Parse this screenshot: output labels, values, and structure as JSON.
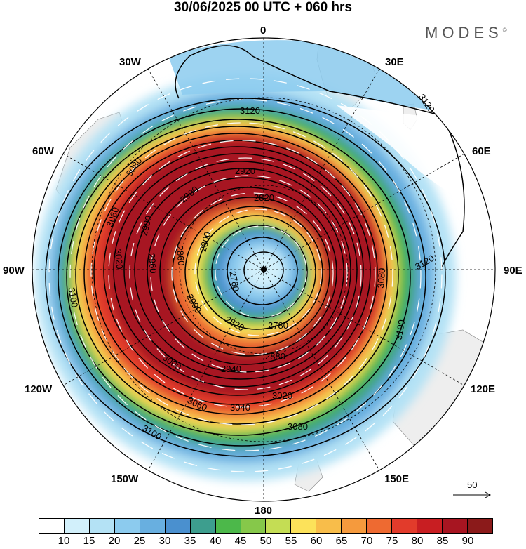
{
  "title": "30/06/2025  00 UTC  + 060 hrs",
  "brand": "MODES",
  "brand_mark": "©",
  "longitude_labels": {
    "n0": "0",
    "n30e": "30E",
    "n60e": "60E",
    "n90e": "90E",
    "n120e": "120E",
    "n150e": "150E",
    "n180": "180",
    "n150w": "150W",
    "n120w": "120W",
    "n90w": "90W",
    "n60w": "60W",
    "n30w": "30W"
  },
  "contour_labels": {
    "c3120a": "3120",
    "c3120b": "3120",
    "c3120c": "3120",
    "c3100a": "3100",
    "c3100b": "3100",
    "c3100c": "3100",
    "c3080a": "3080",
    "c3080b": "3080",
    "c3080c": "3080",
    "c3060a": "3060",
    "c3060b": "3060",
    "c3040": "3040",
    "c3020a": "3020",
    "c3020b": "3020",
    "c3000": "3000",
    "c2980": "2980",
    "c2960": "2960",
    "c2940": "2940",
    "c2920": "2920",
    "c2900a": "2900",
    "c2900b": "2900",
    "c2880": "2880",
    "c2860": "2860",
    "c2820a": "2820",
    "c2820b": "2820",
    "c2800": "2800",
    "c2780": "2780",
    "c2760": "2760"
  },
  "vector_reference": "50",
  "colorbar": {
    "colors": [
      "#ffffff",
      "#d2f0fb",
      "#b4e2f5",
      "#8ccbee",
      "#68afe0",
      "#4a90cf",
      "#3d9e8e",
      "#4cb84a",
      "#86c84a",
      "#c4dd54",
      "#fce25a",
      "#f8bd4a",
      "#f59a3d",
      "#ee6a31",
      "#e23b2b",
      "#c81e22",
      "#a71521",
      "#8b1a1a"
    ],
    "ticks": [
      "10",
      "15",
      "20",
      "25",
      "30",
      "35",
      "40",
      "45",
      "50",
      "55",
      "60",
      "65",
      "70",
      "75",
      "80",
      "85",
      "90"
    ]
  }
}
